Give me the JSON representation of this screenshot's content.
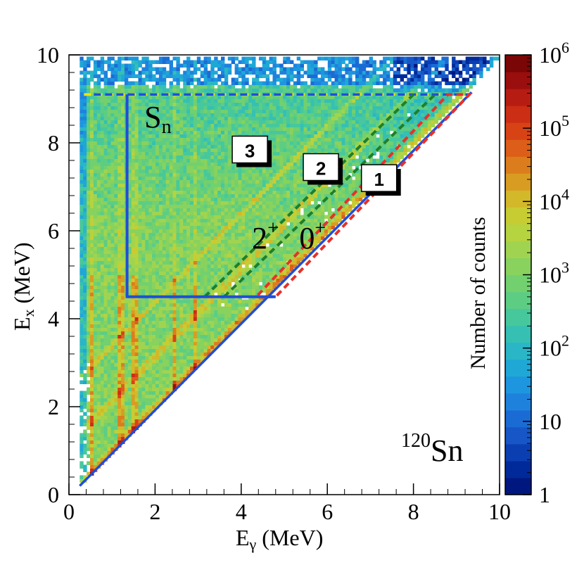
{
  "chart_data": {
    "type": "heatmap",
    "title": "",
    "xlabel": "E",
    "xlabel_sub": "γ",
    "xlabel_unit": " (MeV)",
    "ylabel": "E",
    "ylabel_sub": "x",
    "ylabel_unit": " (MeV)",
    "xlim": [
      0,
      10
    ],
    "ylim": [
      0,
      10
    ],
    "x_ticks": [
      "0",
      "2",
      "4",
      "6",
      "8",
      "10"
    ],
    "y_ticks": [
      "0",
      "2",
      "4",
      "6",
      "8",
      "10"
    ],
    "nucleus": {
      "mass": "120",
      "symbol": "Sn"
    },
    "colorbar": {
      "label": "Number of counts",
      "scale": "log",
      "range": [
        1,
        1000000
      ],
      "tick_values": [
        1,
        10,
        100,
        1000,
        10000,
        100000,
        1000000
      ],
      "tick_labels": [
        {
          "base": "1",
          "exp": ""
        },
        {
          "base": "10",
          "exp": ""
        },
        {
          "base": "10",
          "exp": "2"
        },
        {
          "base": "10",
          "exp": "3"
        },
        {
          "base": "10",
          "exp": "4"
        },
        {
          "base": "10",
          "exp": "5"
        },
        {
          "base": "10",
          "exp": "6"
        }
      ],
      "colors": [
        "#00177f",
        "#002a9a",
        "#0b3fb1",
        "#1656c6",
        "#1a6cd4",
        "#1e82dd",
        "#1d96df",
        "#1fa8d6",
        "#2ab6c7",
        "#35c0b3",
        "#47c89c",
        "#5dcd84",
        "#72d06f",
        "#88d25d",
        "#a0d450",
        "#b6d340",
        "#c8cc33",
        "#d3b82a",
        "#d99c22",
        "#dc7d1d",
        "#dc5e18",
        "#d84316",
        "#cc2d15",
        "#b61c12",
        "#9a0e0e",
        "#7a0605"
      ]
    },
    "annotations": [
      {
        "text": "S",
        "sub": "n",
        "x": 1.75,
        "y": 8.35
      },
      {
        "text": "2",
        "sup": "+",
        "x": 4.25,
        "y": 5.6
      },
      {
        "text": "0",
        "sup": "+",
        "x": 5.35,
        "y": 5.6
      }
    ],
    "gates": [
      {
        "label": "1",
        "color": "#e8302a",
        "points": [
          [
            4.35,
            4.5
          ],
          [
            4.8,
            4.5
          ],
          [
            9.3,
            9.1
          ],
          [
            8.8,
            9.1
          ]
        ],
        "label_x": 7.25,
        "label_y": 7.15
      },
      {
        "label": "2",
        "color": "#1f7f2a",
        "points": [
          [
            3.15,
            4.5
          ],
          [
            8.0,
            9.1
          ]
        ],
        "label_x": 5.9,
        "label_y": 7.4
      },
      {
        "label": "3",
        "color": "#1f7f2a",
        "points": [
          [
            3.6,
            4.5
          ],
          [
            8.5,
            9.1
          ]
        ],
        "label_x": 4.25,
        "label_y": 7.8
      },
      {
        "label": "",
        "color": "#1f4ed8",
        "points": [
          [
            1.35,
            9.1
          ],
          [
            1.35,
            4.5
          ],
          [
            4.8,
            4.5
          ]
        ]
      }
    ],
    "lines": [
      {
        "name": "Sn-line",
        "x": [
          0.35,
          9.3
        ],
        "y": [
          9.1,
          9.1
        ]
      },
      {
        "name": "diagonal",
        "x": [
          0.25,
          9.35
        ],
        "y": [
          0.2,
          9.15
        ]
      }
    ],
    "density_model": {
      "description": "Counts fill the triangle Eγ ≤ Ex ≤ 10 MeV; roughly 10^3 in the continuum, up to 10^5 along low-energy vertical transitions and the diagonal, decreasing toward the diagonal top.",
      "vertical_lines_x": [
        0.5,
        1.17,
        1.5,
        2.4,
        2.9
      ],
      "diagonal_bands_offset": [
        0.0,
        1.17,
        2.4
      ]
    }
  }
}
